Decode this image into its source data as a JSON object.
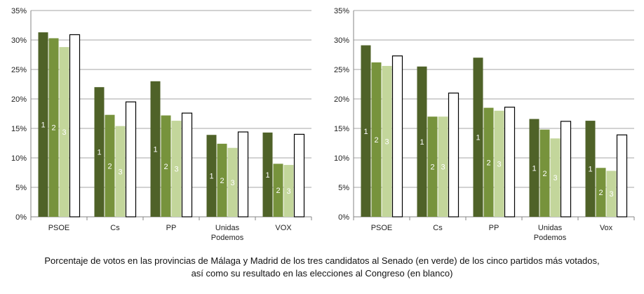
{
  "colors": {
    "senate_1": "#4f6228",
    "senate_2": "#77933c",
    "senate_3": "#c3d69b",
    "congress": "#ffffff",
    "grid": "#a6a6a6",
    "outline": "#000000"
  },
  "caption": {
    "line1": "Porcentaje de votos en las provincias de Málaga y Madrid de los tres candidatos al Senado (en verde) de los cinco partidos más votados,",
    "line2": "así como su resultado en las elecciones al Congreso (en blanco)"
  },
  "chart_data": [
    {
      "type": "bar",
      "title": "",
      "xlabel": "",
      "ylabel": "",
      "ylim": [
        0,
        35
      ],
      "yticks": [
        "0%",
        "5%",
        "10%",
        "15%",
        "20%",
        "25%",
        "30%",
        "35%"
      ],
      "grid": true,
      "legend": "none",
      "categories": [
        [
          "PSOE"
        ],
        [
          "Cs"
        ],
        [
          "PP"
        ],
        [
          "Unidas",
          "Podemos"
        ],
        [
          "VOX"
        ]
      ],
      "bar_labels": [
        "1",
        "2",
        "3",
        ""
      ],
      "series": [
        {
          "values": [
            31.3,
            22.0,
            23.0,
            13.9,
            14.3
          ]
        },
        {
          "values": [
            30.3,
            17.3,
            17.2,
            12.4,
            9.0
          ]
        },
        {
          "values": [
            28.8,
            15.4,
            16.3,
            11.7,
            8.8
          ]
        },
        {
          "values": [
            30.9,
            19.5,
            17.6,
            14.4,
            14.0
          ]
        }
      ]
    },
    {
      "type": "bar",
      "title": "",
      "xlabel": "",
      "ylabel": "",
      "ylim": [
        0,
        35
      ],
      "yticks": [
        "0%",
        "5%",
        "10%",
        "15%",
        "20%",
        "25%",
        "30%",
        "35%"
      ],
      "grid": true,
      "legend": "none",
      "categories": [
        [
          "PSOE"
        ],
        [
          "Cs"
        ],
        [
          "PP"
        ],
        [
          "Unidas",
          "Podemos"
        ],
        [
          "Vox"
        ]
      ],
      "bar_labels": [
        "1",
        "2",
        "3",
        ""
      ],
      "series": [
        {
          "values": [
            29.1,
            25.5,
            27.0,
            16.6,
            16.3
          ]
        },
        {
          "values": [
            26.2,
            17.0,
            18.5,
            14.8,
            8.3
          ]
        },
        {
          "values": [
            25.6,
            17.0,
            18.0,
            13.3,
            7.8
          ]
        },
        {
          "values": [
            27.3,
            21.0,
            18.6,
            16.2,
            13.9
          ]
        }
      ]
    }
  ]
}
